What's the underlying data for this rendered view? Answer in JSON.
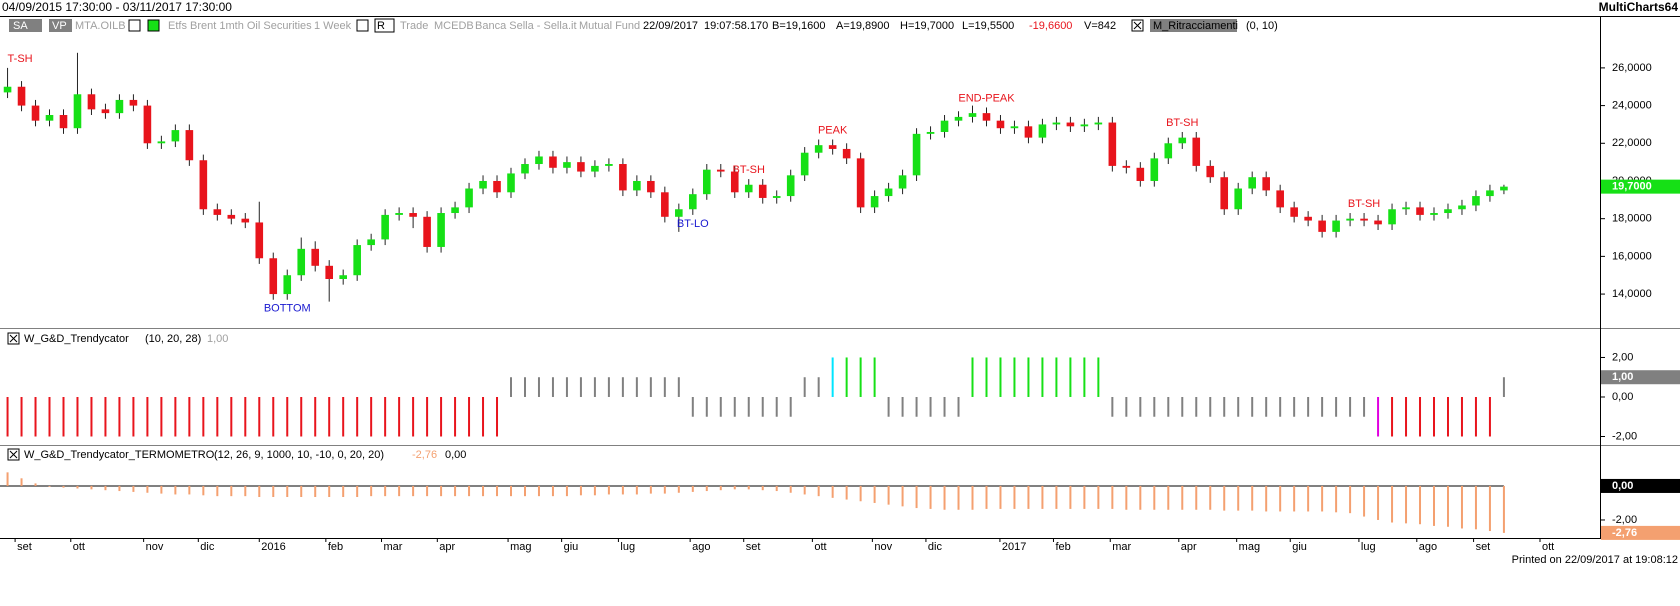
{
  "window": {
    "title": "04/09/2015 17:30:00 - 03/11/2017 17:30:00",
    "app": "MultiCharts64"
  },
  "toolbar": {
    "sa": "SA",
    "vp": "VP",
    "symbol": "MTA.OILB",
    "description": "Etfs Brent 1mth Oil Securities",
    "resolution": "1 Week",
    "r": "R",
    "trade": "Trade",
    "exchange": "MCEDB",
    "broker": "Banca Sella - Sella.it",
    "category": "Mutual Fund",
    "date": "22/09/2017",
    "time": "19:07:58.170",
    "bid": "B=19,1600",
    "ask": "A=19,8900",
    "high": "H=19,7000",
    "low": "L=19,5500",
    "change": "-19,6600",
    "volume": "V=842",
    "study": "M_Ritracciamenti",
    "study_params": "(0, 10)"
  },
  "chart_data": [
    {
      "type": "candlestick",
      "open": [
        24.7,
        25.0,
        24.0,
        23.2,
        23.5,
        22.8,
        24.6,
        23.8,
        23.6,
        24.3,
        24.0,
        22.0,
        22.1,
        22.7,
        21.1,
        18.5,
        18.2,
        18.0,
        17.8,
        15.9,
        14.0,
        15.0,
        16.4,
        15.5,
        14.8,
        15.0,
        16.6,
        16.9,
        18.2,
        18.3,
        18.1,
        16.5,
        18.3,
        18.6,
        19.6,
        20.0,
        19.4,
        20.4,
        20.9,
        21.3,
        20.7,
        21.0,
        20.5,
        20.8,
        20.9,
        19.5,
        20.0,
        19.4,
        18.1,
        18.5,
        19.3,
        20.6,
        20.5,
        19.4,
        19.8,
        19.1,
        19.2,
        20.3,
        21.5,
        21.9,
        21.7,
        21.2,
        18.6,
        19.2,
        19.6,
        20.3,
        22.5,
        22.6,
        23.2,
        23.4,
        23.6,
        23.2,
        22.8,
        22.9,
        22.3,
        23.0,
        23.1,
        22.9,
        23.0,
        23.1,
        20.8,
        20.7,
        20.0,
        21.2,
        22.0,
        22.3,
        20.8,
        20.2,
        18.5,
        19.6,
        20.2,
        19.5,
        18.6,
        18.1,
        17.9,
        17.3,
        17.9,
        18.0,
        17.9,
        17.7,
        18.5,
        18.6,
        18.2,
        18.3,
        18.5,
        18.7,
        19.2,
        19.5
      ],
      "high": [
        26.0,
        25.3,
        24.3,
        23.8,
        23.8,
        26.8,
        24.9,
        24.1,
        24.6,
        24.6,
        24.3,
        22.4,
        23.0,
        23.0,
        21.4,
        18.8,
        18.5,
        18.3,
        18.9,
        16.2,
        15.3,
        17.0,
        16.8,
        15.8,
        15.3,
        16.9,
        17.2,
        18.5,
        18.6,
        18.6,
        18.4,
        18.6,
        18.9,
        19.9,
        20.3,
        20.3,
        20.7,
        21.2,
        21.6,
        21.6,
        21.3,
        21.3,
        21.1,
        21.2,
        21.2,
        20.3,
        20.3,
        19.7,
        18.8,
        19.6,
        20.9,
        20.9,
        20.8,
        20.1,
        20.1,
        19.5,
        20.6,
        21.8,
        22.2,
        22.2,
        22.0,
        21.5,
        19.5,
        19.9,
        20.6,
        22.8,
        22.9,
        23.5,
        23.7,
        24.0,
        23.9,
        23.5,
        23.2,
        23.2,
        23.3,
        23.4,
        23.4,
        23.3,
        23.4,
        23.4,
        21.1,
        21.0,
        21.5,
        22.3,
        22.6,
        22.6,
        21.1,
        20.5,
        19.9,
        20.5,
        20.5,
        19.8,
        18.9,
        18.4,
        18.2,
        18.2,
        18.3,
        18.3,
        18.2,
        18.8,
        18.9,
        18.9,
        18.6,
        18.8,
        19.0,
        19.5,
        19.8,
        19.8
      ],
      "low": [
        24.4,
        23.7,
        22.9,
        22.9,
        22.5,
        22.5,
        23.5,
        23.3,
        23.3,
        23.7,
        21.7,
        21.7,
        21.8,
        20.8,
        18.2,
        17.9,
        17.7,
        17.5,
        15.6,
        13.7,
        13.7,
        14.7,
        15.2,
        13.6,
        14.5,
        14.7,
        16.3,
        16.6,
        17.9,
        17.5,
        16.2,
        16.2,
        18.0,
        18.3,
        19.3,
        19.1,
        19.1,
        20.1,
        20.6,
        20.4,
        20.4,
        20.2,
        20.2,
        20.5,
        19.2,
        19.2,
        19.1,
        17.8,
        17.3,
        18.2,
        19.0,
        20.2,
        19.1,
        19.1,
        18.8,
        18.8,
        18.9,
        20.0,
        21.2,
        21.4,
        20.9,
        18.3,
        18.3,
        18.9,
        19.3,
        20.0,
        22.2,
        22.3,
        22.9,
        23.1,
        22.9,
        22.5,
        22.5,
        22.0,
        22.0,
        22.7,
        22.6,
        22.6,
        22.7,
        20.5,
        20.4,
        19.7,
        19.7,
        20.9,
        21.7,
        20.5,
        19.9,
        18.2,
        18.2,
        19.3,
        19.2,
        18.3,
        17.8,
        17.6,
        17.0,
        17.0,
        17.6,
        17.6,
        17.4,
        17.4,
        18.2,
        17.9,
        17.9,
        18.0,
        18.2,
        18.4,
        18.9,
        19.3
      ],
      "close": [
        25.0,
        24.0,
        23.2,
        23.5,
        22.8,
        24.6,
        23.8,
        23.6,
        24.3,
        24.0,
        22.0,
        22.1,
        22.7,
        21.1,
        18.5,
        18.2,
        18.0,
        17.8,
        15.9,
        14.0,
        15.0,
        16.4,
        15.5,
        14.8,
        15.0,
        16.6,
        16.9,
        18.2,
        18.3,
        18.1,
        16.5,
        18.3,
        18.6,
        19.6,
        20.0,
        19.4,
        20.4,
        20.9,
        21.3,
        20.7,
        21.0,
        20.5,
        20.8,
        20.9,
        19.5,
        20.0,
        19.4,
        18.1,
        18.5,
        19.3,
        20.6,
        20.5,
        19.4,
        19.8,
        19.1,
        19.2,
        20.3,
        21.5,
        21.9,
        21.7,
        21.2,
        18.6,
        19.2,
        19.6,
        20.3,
        22.5,
        22.6,
        23.2,
        23.4,
        23.6,
        23.2,
        22.8,
        22.9,
        22.3,
        23.0,
        23.1,
        22.9,
        23.0,
        23.1,
        20.8,
        20.7,
        20.0,
        21.2,
        22.0,
        22.3,
        20.8,
        20.2,
        18.5,
        19.6,
        20.2,
        19.5,
        18.6,
        18.1,
        17.9,
        17.3,
        17.9,
        18.0,
        17.9,
        17.7,
        18.5,
        18.6,
        18.2,
        18.3,
        18.5,
        18.7,
        19.2,
        19.5,
        19.7
      ],
      "up_color": "#16e016",
      "down_color": "#e8141c",
      "xlim": [
        -0.54,
        113.87
      ],
      "ylim": [
        12.2,
        28.7
      ],
      "yticks": [
        {
          "value": 14,
          "label": "14,0000"
        },
        {
          "value": 16,
          "label": "16,0000"
        },
        {
          "value": 18,
          "label": "18,0000"
        },
        {
          "value": 20,
          "label": "20,0000"
        },
        {
          "value": 22,
          "label": "22,0000"
        },
        {
          "value": 24,
          "label": "24,0000"
        },
        {
          "value": 26,
          "label": "26,0000"
        }
      ],
      "last_values": [
        {
          "value": 19.7,
          "label": "19,7000",
          "color": "#16e016"
        }
      ],
      "annotations": [
        {
          "text": "T-SH",
          "index": 0,
          "position": "above",
          "color": "#e8141c"
        },
        {
          "text": "BOTTOM",
          "index": 20,
          "position": "below",
          "color": "#1a1ad0"
        },
        {
          "text": "BT-LO",
          "index": 49,
          "position": "below",
          "color": "#1a1ad0"
        },
        {
          "text": "BT-SH",
          "index": 53,
          "position": "above",
          "color": "#e8141c"
        },
        {
          "text": "PEAK",
          "index": 59,
          "position": "above",
          "color": "#e8141c"
        },
        {
          "text": "END-PEAK",
          "index": 70,
          "position": "above",
          "color": "#e8141c"
        },
        {
          "text": "BT-SH",
          "index": 84,
          "position": "above",
          "color": "#e8141c"
        },
        {
          "text": "BT-SH",
          "index": 97,
          "position": "above",
          "color": "#e8141c"
        }
      ]
    },
    {
      "type": "bar",
      "name": "W_G&D_Trendycator",
      "params": "(10, 20, 28)",
      "values": [
        -2,
        -2,
        -2,
        -2,
        -2,
        -2,
        -2,
        -2,
        -2,
        -2,
        -2,
        -2,
        -2,
        -2,
        -2,
        -2,
        -2,
        -2,
        -2,
        -2,
        -2,
        -2,
        -2,
        -2,
        -2,
        -2,
        -2,
        -2,
        -2,
        -2,
        -2,
        -2,
        -2,
        -2,
        -2,
        -2,
        1,
        1,
        1,
        1,
        1,
        1,
        1,
        1,
        1,
        1,
        1,
        1,
        1,
        -1,
        -1,
        -1,
        -1,
        -1,
        -1,
        -1,
        -1,
        1,
        1,
        2,
        2,
        2,
        2,
        -1,
        -1,
        -1,
        -1,
        -1,
        -1,
        2,
        2,
        2,
        2,
        2,
        2,
        2,
        2,
        2,
        2,
        -1,
        -1,
        -1,
        -1,
        -1,
        -1,
        -1,
        -1,
        -1,
        -1,
        -1,
        -1,
        -1,
        -1,
        -1,
        -1,
        -1,
        -1,
        -1,
        -2,
        -2,
        -2,
        -2,
        -2,
        -2,
        -2,
        -2,
        -2,
        1
      ],
      "colors": [
        "#e8141c",
        "#e8141c",
        "#e8141c",
        "#e8141c",
        "#e8141c",
        "#e8141c",
        "#e8141c",
        "#e8141c",
        "#e8141c",
        "#e8141c",
        "#e8141c",
        "#e8141c",
        "#e8141c",
        "#e8141c",
        "#e8141c",
        "#e8141c",
        "#e8141c",
        "#e8141c",
        "#e8141c",
        "#e8141c",
        "#e8141c",
        "#e8141c",
        "#e8141c",
        "#e8141c",
        "#e8141c",
        "#e8141c",
        "#e8141c",
        "#e8141c",
        "#e8141c",
        "#e8141c",
        "#e8141c",
        "#e8141c",
        "#e8141c",
        "#e8141c",
        "#e8141c",
        "#e8141c",
        "#808080",
        "#808080",
        "#808080",
        "#808080",
        "#808080",
        "#808080",
        "#808080",
        "#808080",
        "#808080",
        "#808080",
        "#808080",
        "#808080",
        "#808080",
        "#808080",
        "#808080",
        "#808080",
        "#808080",
        "#808080",
        "#808080",
        "#808080",
        "#808080",
        "#808080",
        "#808080",
        "#00e5ff",
        "#16e016",
        "#16e016",
        "#16e016",
        "#808080",
        "#808080",
        "#808080",
        "#808080",
        "#808080",
        "#808080",
        "#16e016",
        "#16e016",
        "#16e016",
        "#16e016",
        "#16e016",
        "#16e016",
        "#16e016",
        "#16e016",
        "#16e016",
        "#16e016",
        "#808080",
        "#808080",
        "#808080",
        "#808080",
        "#808080",
        "#808080",
        "#808080",
        "#808080",
        "#808080",
        "#808080",
        "#808080",
        "#808080",
        "#808080",
        "#808080",
        "#808080",
        "#808080",
        "#808080",
        "#808080",
        "#808080",
        "#e000e0",
        "#e8141c",
        "#e8141c",
        "#e8141c",
        "#e8141c",
        "#e8141c",
        "#e8141c",
        "#e8141c",
        "#e8141c",
        "#808080"
      ],
      "xlim": [
        -0.54,
        113.87
      ],
      "ylim": [
        -2.43,
        3.39
      ],
      "yticks": [
        {
          "value": 2,
          "label": "2,00"
        },
        {
          "value": 0,
          "label": "0,00"
        },
        {
          "value": -2,
          "label": "-2,00"
        }
      ],
      "last_values": [
        {
          "value": 1,
          "label": "1,00",
          "color": "#808080"
        }
      ]
    },
    {
      "type": "bar",
      "name": "W_G&D_Trendycator_TERMOMETRO",
      "params": "(12, 26, 9, 1000, 10, -10, 0, 20, 20)",
      "values": [
        0.8,
        0.45,
        0.15,
        -0.05,
        -0.1,
        -0.15,
        -0.2,
        -0.25,
        -0.3,
        -0.35,
        -0.4,
        -0.45,
        -0.5,
        -0.5,
        -0.55,
        -0.6,
        -0.6,
        -0.6,
        -0.65,
        -0.65,
        -0.65,
        -0.65,
        -0.65,
        -0.65,
        -0.65,
        -0.65,
        -0.6,
        -0.6,
        -0.6,
        -0.6,
        -0.6,
        -0.6,
        -0.6,
        -0.6,
        -0.6,
        -0.6,
        -0.6,
        -0.6,
        -0.6,
        -0.6,
        -0.6,
        -0.55,
        -0.55,
        -0.5,
        -0.5,
        -0.5,
        -0.45,
        -0.45,
        -0.4,
        -0.35,
        -0.3,
        -0.25,
        -0.2,
        -0.2,
        -0.25,
        -0.3,
        -0.4,
        -0.5,
        -0.6,
        -0.7,
        -0.8,
        -0.9,
        -1.0,
        -1.1,
        -1.2,
        -1.3,
        -1.35,
        -1.4,
        -1.4,
        -1.4,
        -1.35,
        -1.35,
        -1.35,
        -1.35,
        -1.35,
        -1.35,
        -1.35,
        -1.35,
        -1.35,
        -1.35,
        -1.4,
        -1.4,
        -1.4,
        -1.4,
        -1.4,
        -1.4,
        -1.4,
        -1.45,
        -1.45,
        -1.45,
        -1.5,
        -1.5,
        -1.5,
        -1.5,
        -1.5,
        -1.55,
        -1.6,
        -1.8,
        -2.0,
        -2.15,
        -2.2,
        -2.25,
        -2.35,
        -2.4,
        -2.5,
        -2.55,
        -2.65,
        -2.76
      ],
      "color": "#f4a070",
      "xlim": [
        -0.54,
        113.87
      ],
      "ylim": [
        -3.06,
        2.29
      ],
      "yticks": [
        {
          "value": 0,
          "label": "0,00"
        },
        {
          "value": -2,
          "label": "-2,00"
        }
      ],
      "last_values": [
        {
          "value": -2.76,
          "label": "-2,76",
          "color": "#f4a070"
        },
        {
          "value": 0,
          "label": "0,00",
          "color": "#000000"
        }
      ],
      "xticks": [
        {
          "value": 0.54,
          "label": "set"
        },
        {
          "value": 4.52,
          "label": "ott"
        },
        {
          "value": 9.73,
          "label": "nov"
        },
        {
          "value": 13.64,
          "label": "dic"
        },
        {
          "value": 18.0,
          "label": "2016"
        },
        {
          "value": 22.76,
          "label": "feb"
        },
        {
          "value": 26.74,
          "label": "mar"
        },
        {
          "value": 30.73,
          "label": "apr"
        },
        {
          "value": 35.79,
          "label": "mag"
        },
        {
          "value": 39.62,
          "label": "giu"
        },
        {
          "value": 43.68,
          "label": "lug"
        },
        {
          "value": 48.81,
          "label": "ago"
        },
        {
          "value": 52.64,
          "label": "set"
        },
        {
          "value": 57.55,
          "label": "ott"
        },
        {
          "value": 61.84,
          "label": "nov"
        },
        {
          "value": 65.67,
          "label": "dic"
        },
        {
          "value": 70.96,
          "label": "2017"
        },
        {
          "value": 74.79,
          "label": "feb"
        },
        {
          "value": 78.85,
          "label": "mar"
        },
        {
          "value": 83.75,
          "label": "apr"
        },
        {
          "value": 87.89,
          "label": "mag"
        },
        {
          "value": 91.72,
          "label": "giu"
        },
        {
          "value": 96.63,
          "label": "lug"
        },
        {
          "value": 100.77,
          "label": "ago"
        },
        {
          "value": 104.83,
          "label": "set"
        },
        {
          "value": 109.58,
          "label": "ott"
        }
      ]
    }
  ],
  "footer": "Printed on 22/09/2017 at 19:08:12"
}
